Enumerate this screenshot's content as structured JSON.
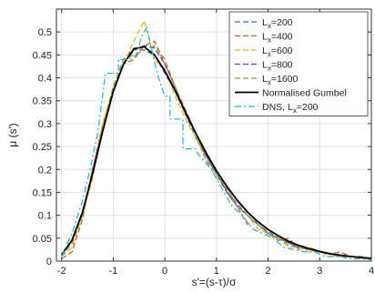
{
  "chart_data": {
    "type": "line",
    "title": "",
    "xlabel": "s'=(s-τ)/σ",
    "ylabel": "μ (s')",
    "xlim": [
      -2.1,
      4.0
    ],
    "ylim": [
      0,
      0.55
    ],
    "x_ticks": [
      -2,
      -1,
      0,
      1,
      2,
      3,
      4
    ],
    "y_ticks": [
      0,
      0.05,
      0.1,
      0.15,
      0.2,
      0.25,
      0.3,
      0.35,
      0.4,
      0.45,
      0.5
    ],
    "x_tick_labels": [
      "-2",
      "-1",
      "0",
      "1",
      "2",
      "3",
      "4"
    ],
    "y_tick_labels": [
      "0",
      "0.05",
      "0.1",
      "0.15",
      "0.2",
      "0.25",
      "0.3",
      "0.35",
      "0.4",
      "0.45",
      "0.5"
    ],
    "grid": true,
    "legend_position": "top-right",
    "series": [
      {
        "name": "L",
        "name_sub": "x",
        "name_suffix": "=200",
        "color": "#3b6fb6",
        "dash": "dashed",
        "x": [
          -2.0,
          -1.8,
          -1.6,
          -1.4,
          -1.2,
          -1.0,
          -0.8,
          -0.6,
          -0.4,
          -0.2,
          0.0,
          0.2,
          0.4,
          0.6,
          0.8,
          1.0,
          1.2,
          1.4,
          1.6,
          1.8,
          2.0,
          2.2,
          2.4,
          2.6,
          2.8,
          3.0,
          3.2,
          3.4,
          3.6,
          3.8,
          4.0
        ],
        "y": [
          0.01,
          0.04,
          0.1,
          0.19,
          0.29,
          0.38,
          0.44,
          0.465,
          0.46,
          0.45,
          0.41,
          0.37,
          0.32,
          0.27,
          0.23,
          0.19,
          0.155,
          0.125,
          0.1,
          0.08,
          0.065,
          0.05,
          0.04,
          0.03,
          0.025,
          0.02,
          0.015,
          0.012,
          0.01,
          0.008,
          0.006
        ]
      },
      {
        "name": "L",
        "name_sub": "x",
        "name_suffix": "=400",
        "color": "#e0572a",
        "dash": "dashed",
        "x": [
          -2.0,
          -1.8,
          -1.6,
          -1.4,
          -1.2,
          -1.0,
          -0.8,
          -0.6,
          -0.4,
          -0.2,
          0.0,
          0.2,
          0.4,
          0.6,
          0.8,
          1.0,
          1.2,
          1.4,
          1.6,
          1.8,
          2.0,
          2.2,
          2.4,
          2.6,
          2.8,
          3.0,
          3.2,
          3.4,
          3.6,
          3.8,
          4.0
        ],
        "y": [
          0.005,
          0.02,
          0.09,
          0.2,
          0.3,
          0.37,
          0.43,
          0.44,
          0.47,
          0.48,
          0.43,
          0.38,
          0.33,
          0.28,
          0.23,
          0.2,
          0.15,
          0.12,
          0.08,
          0.09,
          0.06,
          0.045,
          0.05,
          0.025,
          0.03,
          0.02,
          0.015,
          0.02,
          0.01,
          0.01,
          0.005
        ]
      },
      {
        "name": "L",
        "name_sub": "x",
        "name_suffix": "=600",
        "color": "#e8b517",
        "dash": "dashed",
        "x": [
          -2.0,
          -1.8,
          -1.6,
          -1.4,
          -1.2,
          -1.0,
          -0.8,
          -0.6,
          -0.4,
          -0.2,
          0.0,
          0.2,
          0.4,
          0.6,
          0.8,
          1.0,
          1.2,
          1.4,
          1.6,
          1.8,
          2.0,
          2.2,
          2.4,
          2.6,
          2.8,
          3.0,
          3.2,
          3.4,
          3.6,
          3.8,
          4.0
        ],
        "y": [
          0.01,
          0.03,
          0.1,
          0.18,
          0.3,
          0.38,
          0.43,
          0.48,
          0.525,
          0.44,
          0.42,
          0.36,
          0.31,
          0.27,
          0.22,
          0.18,
          0.16,
          0.12,
          0.1,
          0.07,
          0.06,
          0.05,
          0.03,
          0.03,
          0.02,
          0.02,
          0.01,
          0.01,
          0.01,
          0.005,
          0.005
        ]
      },
      {
        "name": "L",
        "name_sub": "x",
        "name_suffix": "=800",
        "color": "#6b3d9a",
        "dash": "dashed",
        "x": [
          -2.0,
          -1.8,
          -1.6,
          -1.4,
          -1.2,
          -1.0,
          -0.8,
          -0.6,
          -0.4,
          -0.2,
          0.0,
          0.2,
          0.4,
          0.6,
          0.8,
          1.0,
          1.2,
          1.4,
          1.6,
          1.8,
          2.0,
          2.2,
          2.4,
          2.6,
          2.8,
          3.0,
          3.2,
          3.4,
          3.6,
          3.8,
          4.0
        ],
        "y": [
          0.01,
          0.04,
          0.1,
          0.2,
          0.29,
          0.37,
          0.43,
          0.46,
          0.47,
          0.465,
          0.43,
          0.38,
          0.32,
          0.28,
          0.23,
          0.19,
          0.15,
          0.12,
          0.1,
          0.08,
          0.06,
          0.05,
          0.04,
          0.03,
          0.025,
          0.02,
          0.015,
          0.01,
          0.01,
          0.007,
          0.005
        ]
      },
      {
        "name": "L",
        "name_sub": "x",
        "name_suffix": "=1600",
        "color": "#79a83a",
        "dash": "dashed",
        "x": [
          -2.0,
          -1.8,
          -1.6,
          -1.4,
          -1.2,
          -1.0,
          -0.8,
          -0.6,
          -0.4,
          -0.2,
          0.0,
          0.2,
          0.4,
          0.6,
          0.8,
          1.0,
          1.2,
          1.4,
          1.6,
          1.8,
          2.0,
          2.2,
          2.4,
          2.6,
          2.8,
          3.0,
          3.2,
          3.4,
          3.6,
          3.8,
          4.0
        ],
        "y": [
          0.01,
          0.04,
          0.1,
          0.19,
          0.29,
          0.38,
          0.44,
          0.45,
          0.46,
          0.47,
          0.44,
          0.38,
          0.32,
          0.28,
          0.22,
          0.19,
          0.16,
          0.12,
          0.1,
          0.08,
          0.06,
          0.05,
          0.035,
          0.03,
          0.025,
          0.02,
          0.015,
          0.012,
          0.01,
          0.007,
          0.005
        ]
      },
      {
        "name": "Normalised Gumbel",
        "color": "#000000",
        "dash": "solid",
        "x": [
          -2.0,
          -1.8,
          -1.6,
          -1.4,
          -1.2,
          -1.0,
          -0.8,
          -0.6,
          -0.4,
          -0.2,
          0.0,
          0.2,
          0.4,
          0.6,
          0.8,
          1.0,
          1.2,
          1.4,
          1.6,
          1.8,
          2.0,
          2.2,
          2.4,
          2.6,
          2.8,
          3.0,
          3.2,
          3.4,
          3.6,
          3.8,
          4.0
        ],
        "y": [
          0.014,
          0.045,
          0.105,
          0.19,
          0.285,
          0.37,
          0.43,
          0.463,
          0.468,
          0.45,
          0.415,
          0.372,
          0.325,
          0.279,
          0.236,
          0.197,
          0.163,
          0.133,
          0.107,
          0.086,
          0.069,
          0.055,
          0.043,
          0.034,
          0.027,
          0.021,
          0.016,
          0.013,
          0.01,
          0.008,
          0.006
        ]
      },
      {
        "name": "DNS, L",
        "name_sub": "x",
        "name_suffix": "=200",
        "color": "#25b6e0",
        "dash": "dashdot",
        "x": [
          -2.0,
          -1.8,
          -1.6,
          -1.45,
          -1.3,
          -1.15,
          -1.15,
          -0.9,
          -0.9,
          -0.7,
          -0.55,
          -0.45,
          -0.35,
          -0.25,
          -0.15,
          0.0,
          0.1,
          0.1,
          0.35,
          0.35,
          0.6,
          0.6,
          0.9,
          1.1,
          1.3,
          1.5,
          1.7,
          1.9,
          2.1,
          2.3,
          2.5,
          2.7,
          2.9,
          3.1,
          3.4,
          3.6,
          3.8,
          4.0
        ],
        "y": [
          0.01,
          0.06,
          0.13,
          0.2,
          0.28,
          0.41,
          0.41,
          0.41,
          0.44,
          0.44,
          0.45,
          0.49,
          0.51,
          0.46,
          0.41,
          0.36,
          0.36,
          0.31,
          0.31,
          0.245,
          0.245,
          0.24,
          0.2,
          0.16,
          0.12,
          0.1,
          0.07,
          0.06,
          0.05,
          0.03,
          0.025,
          0.02,
          0.02,
          0.01,
          0.01,
          0.005,
          0.005,
          0.003
        ]
      }
    ]
  }
}
